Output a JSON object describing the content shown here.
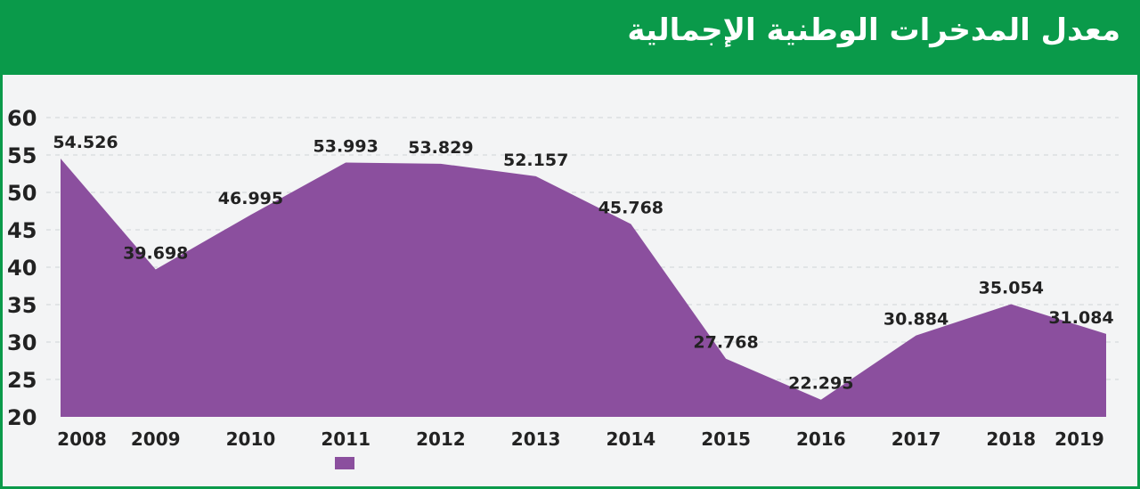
{
  "chart_data": {
    "type": "area",
    "title": "معدل المدخرات الوطنية الإجمالية",
    "x": [
      "2008",
      "2009",
      "2010",
      "2011",
      "2012",
      "2013",
      "2014",
      "2015",
      "2016",
      "2017",
      "2018",
      "2019"
    ],
    "series": [
      {
        "values": [
          54.526,
          39.698,
          46.995,
          53.993,
          53.829,
          52.157,
          45.768,
          27.768,
          22.295,
          30.884,
          35.054,
          31.084
        ]
      }
    ],
    "data_labels": [
      "54.526",
      "39.698",
      "46.995",
      "53.993",
      "53.829",
      "52.157",
      "45.768",
      "27.768",
      "22.295",
      "30.884",
      "35.054",
      "31.084"
    ],
    "y_ticks": [
      "20",
      "25",
      "30",
      "35",
      "40",
      "45",
      "50",
      "55",
      "60"
    ],
    "ylim": [
      20,
      60
    ],
    "grid": true,
    "colors": {
      "area": "#8b4f9e",
      "header": "#0a9a4a",
      "background": "#f3f4f5",
      "text": "#222222"
    }
  }
}
